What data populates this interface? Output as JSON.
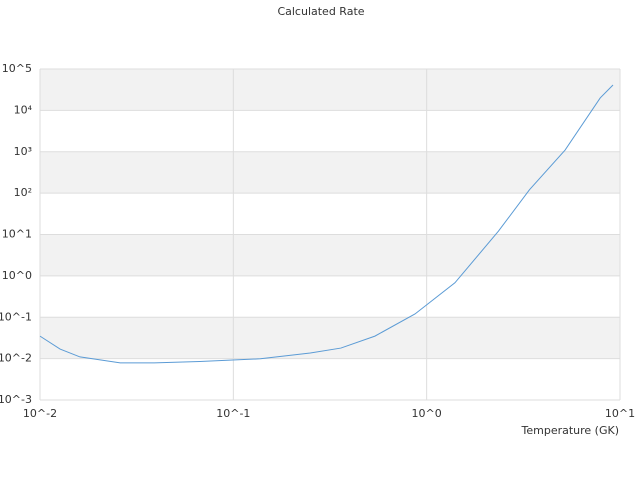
{
  "chart_data": {
    "type": "line",
    "title": "Calculated Rate",
    "xlabel": "Temperature (GK)",
    "x": [
      0.01,
      0.0127,
      0.0161,
      0.026,
      0.039,
      0.067,
      0.138,
      0.25,
      0.36,
      0.54,
      0.87,
      1.4,
      2.35,
      3.4,
      5.2,
      7.9,
      9.2
    ],
    "series": [
      {
        "color": "#5b9bd5",
        "values": [
          0.035,
          0.017,
          0.011,
          0.0079,
          0.0079,
          0.0085,
          0.0099,
          0.0137,
          0.018,
          0.035,
          0.12,
          0.68,
          12,
          120,
          1100,
          20000,
          41000
        ]
      }
    ],
    "xlog": true,
    "ylog": true,
    "xlim": [
      0.01,
      10
    ],
    "ylim": [
      0.001,
      100000
    ],
    "xticks": [
      {
        "value": 0.01,
        "label": "10^-2"
      },
      {
        "value": 0.1,
        "label": "10^-1"
      },
      {
        "value": 1,
        "label": "10^0"
      },
      {
        "value": 10,
        "label": "10^1"
      }
    ],
    "yticks": [
      {
        "value": 0.001,
        "label": "10^-3"
      },
      {
        "value": 0.01,
        "label": "10^-2"
      },
      {
        "value": 0.1,
        "label": "10^-1"
      },
      {
        "value": 1,
        "label": "10^0"
      },
      {
        "value": 10,
        "label": "10^1"
      },
      {
        "value": 100,
        "label": "10²"
      },
      {
        "value": 1000,
        "label": "10³"
      },
      {
        "value": 10000,
        "label": "10⁴"
      },
      {
        "value": 100000,
        "label": "10^5"
      }
    ],
    "band_color": "#f2f2f2",
    "grid": true
  }
}
